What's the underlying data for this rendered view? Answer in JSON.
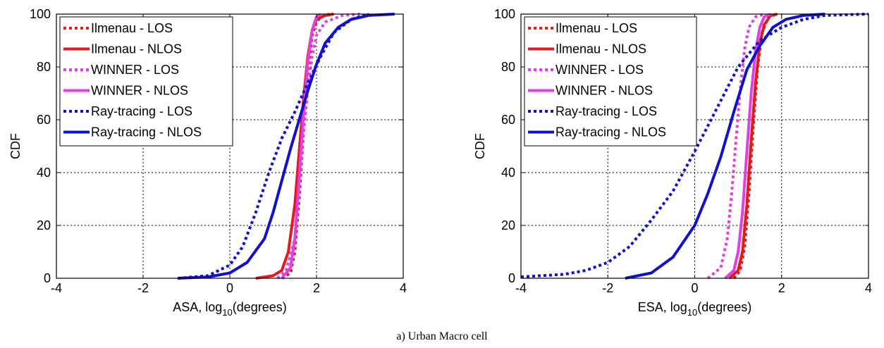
{
  "caption": "a) Urban Macro cell",
  "chart_data": [
    {
      "type": "line",
      "xlabel": "ASA, log",
      "xlabel_sub": "10",
      "xlabel_suffix": "(degrees)",
      "ylabel": "CDF",
      "xlim": [
        -4,
        4
      ],
      "ylim": [
        0,
        100
      ],
      "xticks": [
        "-4",
        "-2",
        "0",
        "2",
        "4"
      ],
      "yticks": [
        "0",
        "20",
        "40",
        "60",
        "80",
        "100"
      ],
      "grid": true,
      "legend": "top-left",
      "series": [
        {
          "name": "Ilmenau - LOS",
          "color": "#e31a1c",
          "dash": "dotted",
          "x": [
            1.2,
            1.4,
            1.5,
            1.6,
            1.7,
            1.8,
            1.9,
            2.0,
            2.1,
            2.3
          ],
          "y": [
            0,
            2,
            10,
            30,
            55,
            78,
            92,
            97,
            99,
            100
          ]
        },
        {
          "name": "Ilmenau - NLOS",
          "color": "#e31a1c",
          "dash": "solid",
          "x": [
            0.6,
            1.0,
            1.2,
            1.35,
            1.5,
            1.6,
            1.7,
            1.8,
            1.9,
            2.0,
            2.2,
            2.4
          ],
          "y": [
            0,
            1,
            3,
            10,
            28,
            48,
            68,
            84,
            94,
            98,
            99.5,
            100
          ]
        },
        {
          "name": "WINNER - LOS",
          "color": "#e040e0",
          "dash": "dotted",
          "x": [
            1.1,
            1.3,
            1.5,
            1.6,
            1.7,
            1.8,
            1.9,
            2.0,
            2.2,
            2.6,
            3.0
          ],
          "y": [
            0,
            3,
            15,
            35,
            55,
            72,
            84,
            92,
            97,
            99.5,
            100
          ]
        },
        {
          "name": "WINNER - NLOS",
          "color": "#e040e0",
          "dash": "solid",
          "x": [
            1.2,
            1.4,
            1.5,
            1.6,
            1.7,
            1.8,
            1.9,
            2.0,
            2.1
          ],
          "y": [
            0,
            4,
            15,
            38,
            62,
            82,
            94,
            99,
            100
          ]
        },
        {
          "name": "Ray-tracing - LOS",
          "color": "#1010d0",
          "dash": "dotted",
          "x": [
            -1.2,
            -0.5,
            0.0,
            0.3,
            0.6,
            0.9,
            1.2,
            1.5,
            1.8,
            2.1,
            2.4,
            2.8,
            3.2
          ],
          "y": [
            0,
            1,
            5,
            12,
            25,
            40,
            53,
            63,
            74,
            84,
            93,
            98,
            100
          ]
        },
        {
          "name": "Ray-tracing - NLOS",
          "color": "#1010d0",
          "dash": "solid",
          "x": [
            -1.2,
            -0.5,
            0.0,
            0.4,
            0.8,
            1.0,
            1.2,
            1.4,
            1.6,
            1.8,
            2.0,
            2.2,
            2.5,
            2.8,
            3.2,
            3.8
          ],
          "y": [
            0,
            0.5,
            2,
            6,
            15,
            25,
            37,
            49,
            60,
            71,
            81,
            89,
            95,
            98,
            99.5,
            100
          ]
        }
      ]
    },
    {
      "type": "line",
      "xlabel": "ESA, log",
      "xlabel_sub": "10",
      "xlabel_suffix": "(degrees)",
      "ylabel": "CDF",
      "xlim": [
        -4,
        4
      ],
      "ylim": [
        0,
        100
      ],
      "xticks": [
        "-4",
        "-2",
        "0",
        "2",
        "4"
      ],
      "yticks": [
        "0",
        "20",
        "40",
        "60",
        "80",
        "100"
      ],
      "grid": true,
      "legend": "top-left",
      "series": [
        {
          "name": "Ilmenau - LOS",
          "color": "#e31a1c",
          "dash": "dotted",
          "x": [
            0.9,
            1.05,
            1.15,
            1.25,
            1.35,
            1.45,
            1.55,
            1.7,
            1.9
          ],
          "y": [
            0,
            3,
            12,
            32,
            58,
            80,
            93,
            99,
            100
          ]
        },
        {
          "name": "Ilmenau - NLOS",
          "color": "#e31a1c",
          "dash": "solid",
          "x": [
            0.8,
            1.0,
            1.1,
            1.2,
            1.3,
            1.4,
            1.5,
            1.6,
            1.75,
            1.9
          ],
          "y": [
            0,
            3,
            10,
            28,
            52,
            74,
            89,
            96,
            99.5,
            100
          ]
        },
        {
          "name": "WINNER - LOS",
          "color": "#e040e0",
          "dash": "dotted",
          "x": [
            0.3,
            0.6,
            0.75,
            0.85,
            0.95,
            1.05,
            1.15,
            1.25,
            1.4,
            1.6
          ],
          "y": [
            0,
            4,
            15,
            32,
            52,
            72,
            87,
            95,
            99,
            100
          ]
        },
        {
          "name": "WINNER - NLOS",
          "color": "#e040e0",
          "dash": "solid",
          "x": [
            0.7,
            0.9,
            1.0,
            1.1,
            1.2,
            1.3,
            1.4,
            1.5,
            1.6,
            1.75
          ],
          "y": [
            0,
            3,
            10,
            25,
            48,
            70,
            86,
            95,
            99,
            100
          ]
        },
        {
          "name": "Ray-tracing - LOS",
          "color": "#1010d0",
          "dash": "dotted",
          "x": [
            -4.0,
            -3.0,
            -2.5,
            -2.0,
            -1.5,
            -1.0,
            -0.5,
            0.0,
            0.5,
            1.0,
            1.5,
            2.0,
            2.5,
            3.0,
            4.0
          ],
          "y": [
            0.5,
            1.5,
            3,
            6,
            12,
            22,
            33,
            48,
            64,
            80,
            90,
            95,
            98,
            99.5,
            100
          ]
        },
        {
          "name": "Ray-tracing - NLOS",
          "color": "#1010d0",
          "dash": "solid",
          "x": [
            -1.6,
            -1.0,
            -0.5,
            0.0,
            0.3,
            0.6,
            0.9,
            1.2,
            1.5,
            1.8,
            2.1,
            2.5,
            3.0
          ],
          "y": [
            0,
            2,
            8,
            20,
            32,
            46,
            63,
            79,
            88,
            95,
            98,
            99.5,
            100
          ]
        }
      ]
    }
  ]
}
